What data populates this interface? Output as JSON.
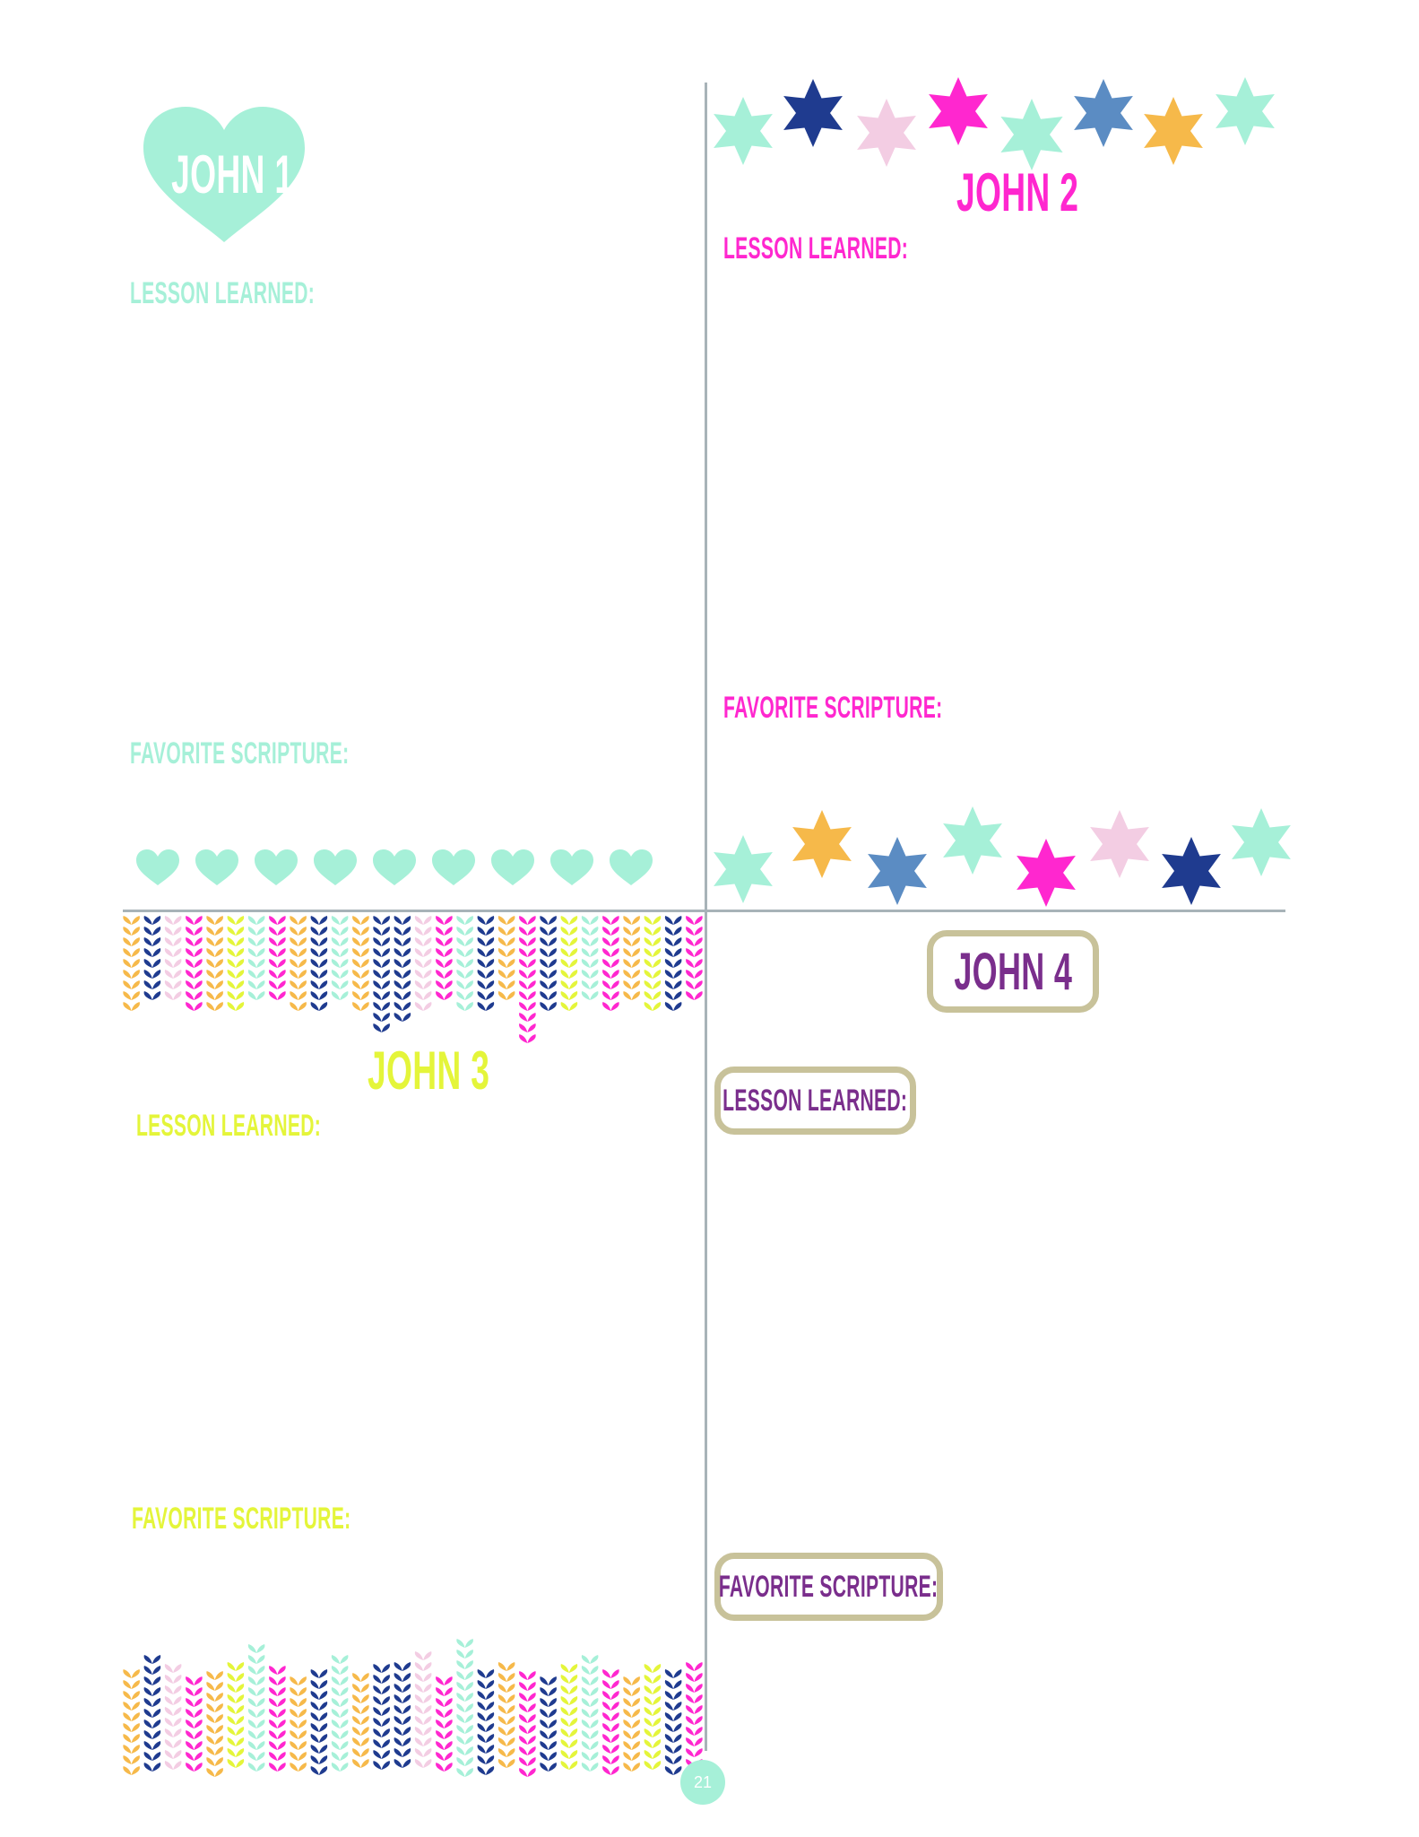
{
  "colors": {
    "mint": "#a6f0d8",
    "magenta": "#ff27cf",
    "navy": "#1f3b8f",
    "steel_blue": "#5b8cc3",
    "pink_light": "#f3cde3",
    "gold": "#f6b94a",
    "lime": "#e4f53a",
    "purple": "#7a2e8c",
    "khaki": "#c8c29a",
    "divider": "#a8b3b8"
  },
  "sections": {
    "john1": {
      "title": "JOHN 1",
      "lesson_label": "LESSON LEARNED:",
      "scripture_label": "FAVORITE SCRIPTURE:",
      "icon": "heart-icon"
    },
    "john2": {
      "title": "JOHN 2",
      "lesson_label": "LESSON LEARNED:",
      "scripture_label": "FAVORITE SCRIPTURE:",
      "icon": "star-icon"
    },
    "john3": {
      "title": "JOHN 3",
      "lesson_label": "LESSON LEARNED:",
      "scripture_label": "FAVORITE SCRIPTURE:",
      "icon": "leaf-braid-icon"
    },
    "john4": {
      "title": "JOHN 4",
      "lesson_label": "LESSON LEARNED:",
      "scripture_label": "FAVORITE SCRIPTURE:"
    }
  },
  "page_number": "21"
}
